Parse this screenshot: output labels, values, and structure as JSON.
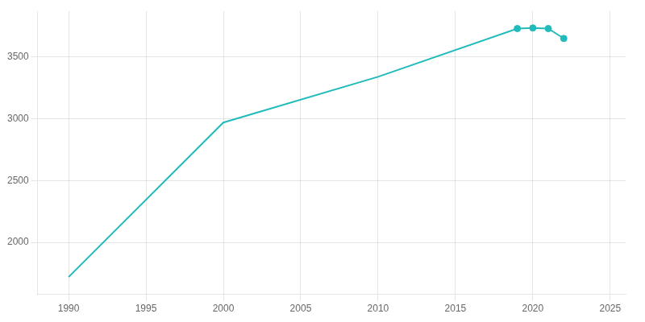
{
  "chart_data": {
    "type": "line",
    "x": [
      1990,
      2000,
      2010,
      2019,
      2020,
      2021,
      2022
    ],
    "series": [
      {
        "type": "line",
        "color": "#22BBBB",
        "marker": "none",
        "values": [
          1720,
          2970,
          3340,
          3730,
          3735,
          3730,
          3650
        ]
      },
      {
        "type": "scatter",
        "color": "#22BBBB",
        "marker": "circle",
        "values": [
          null,
          null,
          null,
          3730,
          3735,
          3730,
          3650
        ]
      }
    ],
    "xlim": [
      1988,
      2026
    ],
    "ylim": [
      1580,
      3870
    ],
    "xticks": [
      1990,
      1995,
      2000,
      2005,
      2010,
      2015,
      2020,
      2025
    ],
    "yticks": [
      2000,
      2500,
      3000,
      3500
    ],
    "grid": true
  }
}
